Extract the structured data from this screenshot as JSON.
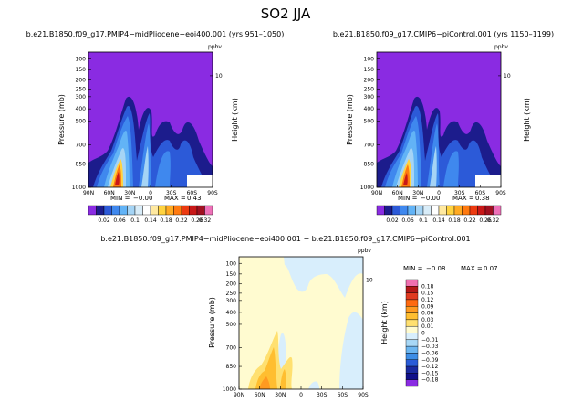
{
  "figure": {
    "title": "SO2 JJA"
  },
  "chart_data": [
    {
      "type": "heatmap",
      "title": "b.e21.B1850.f09_g17.PMIP4−midPliocene−eoi400.001 (yrs 951–1050)",
      "units": "ppbv",
      "xlabel": "",
      "ylabel": "Pressure (mb)",
      "y2label": "Height (km)",
      "x_ticks": [
        "90N",
        "60N",
        "30N",
        "0",
        "30S",
        "60S",
        "90S"
      ],
      "y_ticks": [
        "1000",
        "850",
        "700",
        "500",
        "400",
        "300",
        "250",
        "200",
        "150",
        "100"
      ],
      "y2_ticks": [
        "10"
      ],
      "min_label": "MIN =",
      "min_value": "−0.00",
      "max_label": "MAX =",
      "max_value": "0.43",
      "colorbar": {
        "orientation": "horizontal",
        "labels": [
          "0.02",
          "0.06",
          "0.1",
          "0.14",
          "0.18",
          "0.22",
          "0.26",
          "0.32"
        ]
      }
    },
    {
      "type": "heatmap",
      "title": "b.e21.B1850.f09_g17.CMIP6−piControl.001 (yrs 1150–1199)",
      "units": "ppbv",
      "xlabel": "",
      "ylabel": "Pressure (mb)",
      "y2label": "Height (km)",
      "x_ticks": [
        "90N",
        "60N",
        "30N",
        "0",
        "30S",
        "60S",
        "90S"
      ],
      "y_ticks": [
        "1000",
        "850",
        "700",
        "500",
        "400",
        "300",
        "250",
        "200",
        "150",
        "100"
      ],
      "y2_ticks": [
        "10"
      ],
      "min_label": "MIN =",
      "min_value": "−0.00",
      "max_label": "MAX =",
      "max_value": "0.38",
      "colorbar": {
        "orientation": "horizontal",
        "labels": [
          "0.02",
          "0.06",
          "0.1",
          "0.14",
          "0.18",
          "0.22",
          "0.26",
          "0.32"
        ]
      }
    },
    {
      "type": "heatmap",
      "title": "b.e21.B1850.f09_g17.PMIP4−midPliocene−eoi400.001 − b.e21.B1850.f09_g17.CMIP6−piControl.001",
      "units": "ppbv",
      "xlabel": "",
      "ylabel": "Pressure (mb)",
      "y2label": "Height (km)",
      "x_ticks": [
        "90N",
        "60N",
        "30N",
        "0",
        "30S",
        "60S",
        "90S"
      ],
      "y_ticks": [
        "1000",
        "850",
        "700",
        "500",
        "400",
        "300",
        "250",
        "200",
        "150",
        "100"
      ],
      "y2_ticks": [
        "10"
      ],
      "min_label": "MIN =",
      "min_value": "−0.08",
      "max_label": "MAX =",
      "max_value": "0.07",
      "colorbar": {
        "orientation": "vertical",
        "labels": [
          "0.18",
          "0.15",
          "0.12",
          "0.09",
          "0.06",
          "0.03",
          "0.01",
          "0",
          "−0.01",
          "−0.03",
          "−0.06",
          "−0.09",
          "−0.12",
          "−0.15",
          "−0.18"
        ]
      }
    }
  ],
  "colors": {
    "abs_scale": [
      "#8a2be2",
      "#1c1c8c",
      "#2c5ad8",
      "#3f88ee",
      "#62b3f6",
      "#a5d4f5",
      "#d8ecf8",
      "#ffffff",
      "#ffe9a0",
      "#ffd340",
      "#ffaa22",
      "#ff7a10",
      "#ec3a10",
      "#c81818",
      "#a01020",
      "#ee70b8"
    ],
    "diff_scale": [
      "#f070b0",
      "#b41818",
      "#e03a20",
      "#ff6a10",
      "#ff9a20",
      "#ffbe30",
      "#ffe070",
      "#fffbd0",
      "#d8eefc",
      "#a8d8f6",
      "#6cb6f0",
      "#3e8ee6",
      "#2a5cd8",
      "#1a2aa0",
      "#10108a",
      "#8a2be2"
    ]
  }
}
